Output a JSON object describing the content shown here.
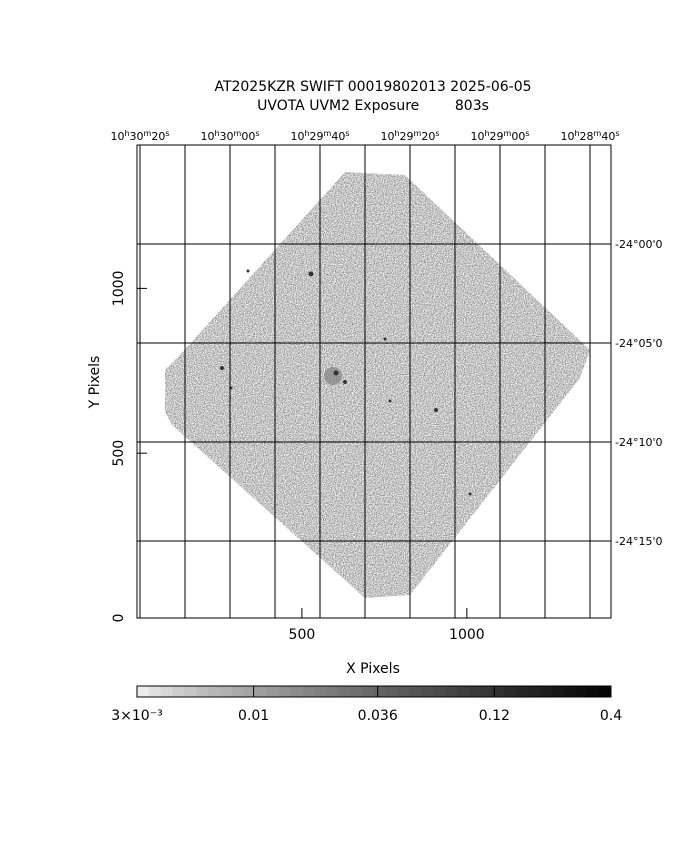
{
  "chart_data": {
    "type": "image",
    "title": "AT2025KZR SWIFT 00019802013 2025-06-05",
    "subtitle": "UVOTA UVM2 Exposure        803s",
    "xlabel": "X Pixels",
    "ylabel": "Y Pixels",
    "xlim": [
      0,
      1437
    ],
    "ylim": [
      0,
      1435
    ],
    "xticks": [
      500,
      1000
    ],
    "yticks": [
      0,
      500,
      1000
    ],
    "top_ticks": [
      "10h30m20s",
      "10h30m00s",
      "10h29m40s",
      "10h29m20s",
      "10h29m00s",
      "10h28m40s"
    ],
    "right_ticks": [
      "-24°00'0",
      "-24°05'0",
      "-24°10'0",
      "-24°15'0"
    ],
    "colorbar": {
      "log": true,
      "lim": [
        0.003,
        0.4
      ],
      "ticks": [
        {
          "value": 0.003,
          "label": "3×10⁻³"
        },
        0.01,
        0.036,
        0.12,
        0.4
      ]
    }
  }
}
